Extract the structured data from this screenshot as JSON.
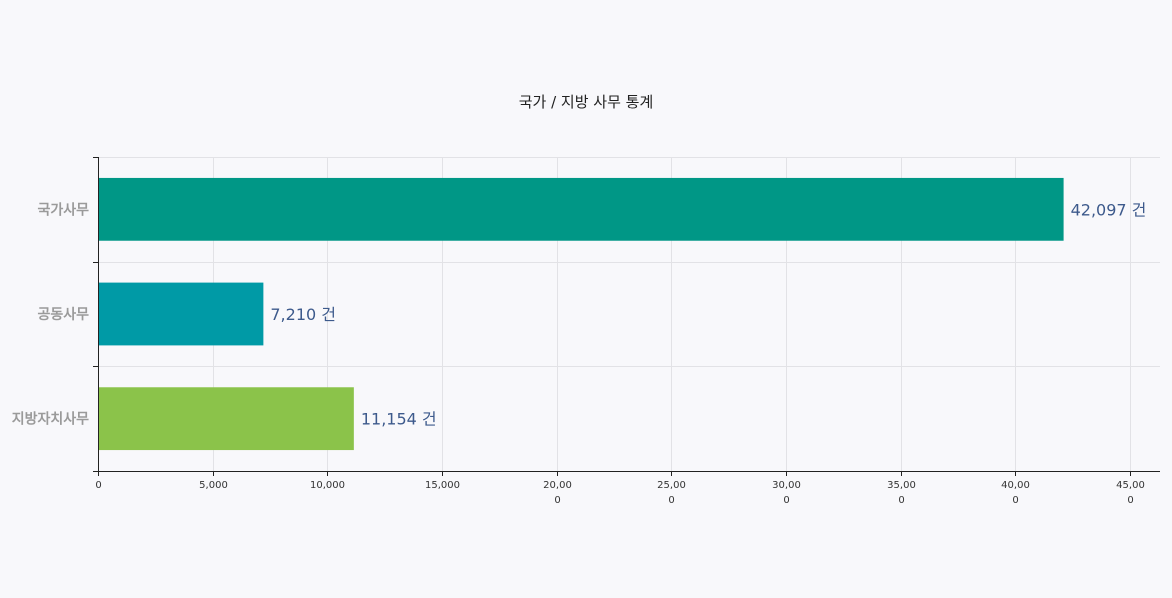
{
  "chart_data": {
    "type": "bar",
    "orientation": "horizontal",
    "title": "국가 / 지방 사무 통계",
    "categories": [
      "국가사무",
      "공동사무",
      "지방자치사무"
    ],
    "values": [
      42097,
      7210,
      11154
    ],
    "value_labels": [
      "42,097 건",
      "7,210 건",
      "11,154 건"
    ],
    "colors": [
      "#009786",
      "#009aa6",
      "#8bc34a"
    ],
    "xlim": [
      0,
      46300
    ],
    "xticks": [
      0,
      5000,
      10000,
      15000,
      20000,
      25000,
      30000,
      35000,
      40000,
      45000
    ],
    "xtick_labels": [
      [
        "0"
      ],
      [
        "5,000"
      ],
      [
        "10,000"
      ],
      [
        "15,000"
      ],
      [
        "20,00",
        "0"
      ],
      [
        "25,00",
        "0"
      ],
      [
        "30,00",
        "0"
      ],
      [
        "35,00",
        "0"
      ],
      [
        "40,00",
        "0"
      ],
      [
        "45,00",
        "0"
      ]
    ],
    "grid": true,
    "legend": "none",
    "xlabel": "",
    "ylabel": ""
  }
}
